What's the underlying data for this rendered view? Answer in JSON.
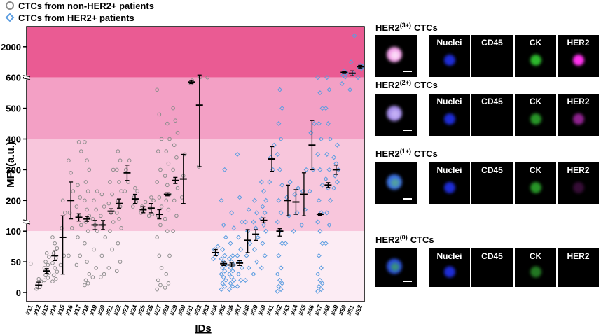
{
  "chart_data": {
    "type": "dot",
    "xlabel": "IDs",
    "ylabel": "MFI (a.u.)",
    "categories": [
      "#11",
      "#12",
      "#13",
      "#14",
      "#15",
      "#16",
      "#17",
      "#18",
      "#19",
      "#20",
      "#21",
      "#22",
      "#23",
      "#24",
      "#25",
      "#26",
      "#27",
      "#28",
      "#29",
      "#30",
      "#31",
      "#32",
      "#33",
      "#34",
      "#35",
      "#36",
      "#37",
      "#38",
      "#39",
      "#40",
      "#41",
      "#42",
      "#43",
      "#44",
      "#45",
      "#46",
      "#47",
      "#48",
      "#49",
      "#50",
      "#51",
      "#52"
    ],
    "ylim": [
      -15,
      2900
    ],
    "yticks": [
      0,
      50,
      100,
      200,
      300,
      400,
      500,
      600,
      2000
    ],
    "axis_breaks": [
      600,
      130
    ],
    "bands": [
      {
        "range": [
          600,
          2900
        ],
        "color": "#ea5b93"
      },
      {
        "range": [
          400,
          600
        ],
        "color": "#f3a0c5"
      },
      {
        "range": [
          100,
          400
        ],
        "color": "#f8c6dc"
      },
      {
        "range": [
          -15,
          100
        ],
        "color": "#fcecf4"
      }
    ],
    "series": [
      {
        "name": "CTCs from non-HER2+ patients",
        "color": "#8c8c8c",
        "marker": "circle",
        "values": [
          null,
          12,
          35,
          60,
          90,
          200,
          145,
          140,
          120,
          120,
          165,
          190,
          290,
          205,
          170,
          175,
          155,
          220,
          265,
          270,
          585,
          510,
          null,
          null,
          null,
          null,
          null,
          null,
          null,
          null,
          null,
          null,
          null,
          null,
          null,
          null,
          null,
          null,
          null,
          null,
          null,
          null
        ],
        "errors": [
          null,
          5,
          4,
          8,
          60,
          60,
          12,
          8,
          15,
          15,
          8,
          15,
          25,
          15,
          10,
          15,
          15,
          5,
          10,
          80,
          5,
          200,
          null,
          null,
          null,
          null,
          null,
          null,
          null,
          null,
          null,
          null,
          null,
          null,
          null,
          null,
          null,
          null,
          null,
          null,
          null,
          null
        ],
        "points": [
          [
            47
          ],
          [
            6,
            10,
            14,
            18,
            22
          ],
          [
            20,
            24,
            28,
            32,
            36,
            40,
            45,
            50,
            58,
            64
          ],
          [
            18,
            22,
            28,
            34,
            40,
            48,
            56,
            64,
            72,
            80,
            90
          ],
          [
            45,
            60,
            110,
            160,
            200
          ],
          [
            60,
            110,
            160,
            230,
            290,
            330
          ],
          [
            45,
            60,
            90,
            120,
            150,
            180,
            210,
            250,
            360,
            390
          ],
          [
            12,
            15,
            20,
            30,
            50,
            80,
            100,
            130,
            150,
            170,
            200,
            230,
            260,
            300,
            330,
            390
          ],
          [
            25,
            40,
            70,
            100,
            120,
            140,
            170,
            200,
            230
          ],
          [
            25,
            30,
            60,
            90,
            120,
            150,
            180,
            220
          ],
          [
            40,
            70,
            100,
            130,
            160,
            190,
            220,
            260,
            300
          ],
          [
            35,
            50,
            80,
            110,
            140,
            160,
            180,
            200,
            230,
            260,
            300,
            330,
            360
          ],
          [
            230,
            260,
            300,
            330
          ],
          [
            180,
            195,
            210,
            230,
            240
          ],
          [
            160,
            170,
            180,
            195
          ],
          [
            150,
            155,
            175,
            200,
            210
          ],
          [
            5,
            12,
            20,
            40,
            60,
            90,
            120,
            150,
            180,
            210,
            260,
            300,
            360,
            400,
            480,
            560
          ],
          [
            8,
            15,
            30,
            60,
            100,
            140,
            170,
            200,
            220,
            250,
            280,
            320,
            360,
            400,
            450
          ],
          [
            100,
            150,
            200,
            240,
            270,
            300,
            340,
            380,
            420,
            460,
            500
          ],
          [
            210,
            280,
            350
          ],
          [
            580,
            590
          ],
          [
            310,
            610
          ],
          [
            600
          ],
          null,
          null,
          null,
          null,
          null,
          null,
          null,
          null,
          null,
          null,
          null,
          null,
          null,
          null,
          null,
          null,
          null,
          null,
          null
        ]
      },
      {
        "name": "CTCs from HER2+ patients",
        "color": "#5b9de0",
        "marker": "diamond",
        "values": [
          null,
          null,
          null,
          null,
          null,
          null,
          null,
          null,
          null,
          null,
          null,
          null,
          null,
          null,
          null,
          null,
          null,
          null,
          null,
          null,
          null,
          null,
          null,
          65,
          47,
          45,
          48,
          85,
          95,
          135,
          335,
          100,
          200,
          195,
          220,
          380,
          155,
          250,
          300,
          830,
          790,
          1090
        ],
        "errors": [
          null,
          null,
          null,
          null,
          null,
          null,
          null,
          null,
          null,
          null,
          null,
          null,
          null,
          null,
          null,
          null,
          null,
          null,
          null,
          null,
          null,
          null,
          null,
          5,
          3,
          3,
          4,
          20,
          10,
          8,
          40,
          8,
          50,
          40,
          70,
          80,
          3,
          8,
          15,
          50,
          110,
          60
        ],
        "points": [
          null,
          null,
          null,
          null,
          null,
          null,
          null,
          null,
          null,
          null,
          null,
          null,
          null,
          null,
          null,
          null,
          null,
          null,
          null,
          null,
          null,
          null,
          null,
          [
            55,
            62,
            70,
            75
          ],
          [
            5,
            10,
            15,
            20,
            25,
            30,
            35,
            40,
            45,
            50,
            55,
            60,
            70,
            90,
            120,
            200,
            300
          ],
          [
            5,
            10,
            15,
            20,
            25,
            30,
            35,
            40,
            45,
            50,
            55,
            60,
            80,
            110,
            160
          ],
          [
            10,
            20,
            30,
            40,
            50,
            60,
            70,
            90,
            130,
            210,
            350
          ],
          [
            20,
            40,
            60,
            80,
            100,
            130,
            170
          ],
          [
            30,
            50,
            70,
            90,
            110,
            130,
            160,
            200
          ],
          [
            40,
            60,
            80,
            100,
            120,
            140,
            160,
            180,
            200,
            230,
            260
          ],
          [
            260,
            300,
            340,
            380
          ],
          [
            2,
            5,
            10,
            15,
            20,
            30,
            40,
            60,
            80,
            100,
            130,
            160,
            200,
            250,
            300,
            350,
            400,
            450,
            500,
            560
          ],
          [
            80,
            150,
            210,
            260
          ],
          [
            100,
            160,
            220,
            240
          ],
          [
            120,
            170,
            230,
            300
          ],
          [
            230,
            300,
            420,
            450
          ],
          [
            2,
            5,
            10,
            15,
            20,
            30,
            40,
            60,
            80,
            100,
            130,
            160,
            200,
            250,
            300,
            350,
            400,
            450,
            500,
            550,
            600
          ],
          [
            80,
            120,
            160,
            200,
            240,
            270,
            300,
            350,
            400,
            450,
            500,
            560,
            600
          ],
          [
            240,
            260,
            280,
            300,
            320,
            340,
            380
          ],
          [
            580,
            620,
            700,
            800,
            900
          ],
          [
            560,
            800,
            1300,
            2500
          ],
          [
            600,
            1000,
            1050,
            1100,
            1150
          ]
        ]
      }
    ]
  },
  "image_panels": {
    "channels": [
      "Nuclei",
      "CD45",
      "CK",
      "HER2"
    ],
    "rows": [
      {
        "name": "HER2",
        "grade": "(3+)",
        "suffix": "CTCs"
      },
      {
        "name": "HER2",
        "grade": "(2+)",
        "suffix": "CTCs"
      },
      {
        "name": "HER2",
        "grade": "(1+)",
        "suffix": "CTCs"
      },
      {
        "name": "HER2",
        "grade": "(0)",
        "suffix": "CTCs"
      }
    ]
  }
}
